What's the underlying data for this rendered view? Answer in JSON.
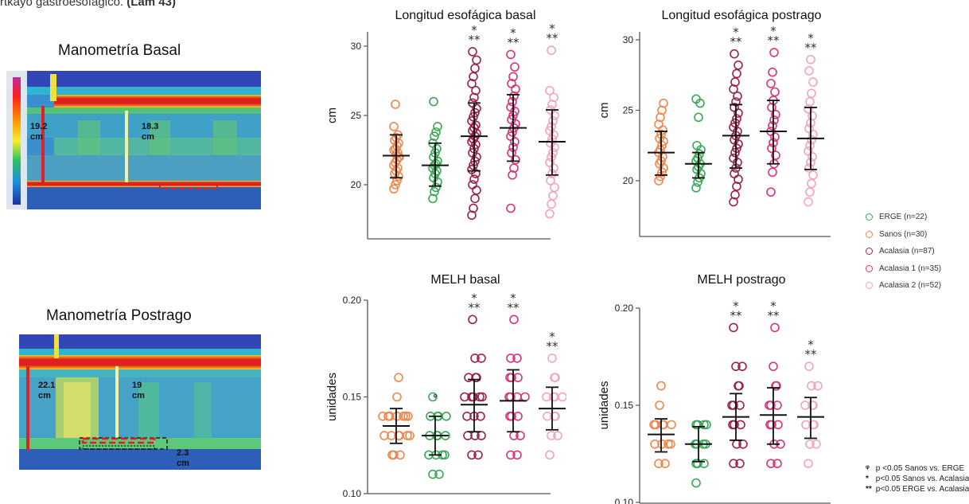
{
  "caption": {
    "prefix": "rtkayo gastroesofágico.",
    "suffix": " (Lam 43)"
  },
  "manometry": {
    "basal": {
      "title": "Manometría Basal",
      "label1_value": "19.2",
      "label1_unit": "cm",
      "label2_value": "18.3",
      "label2_unit": "cm"
    },
    "postrago": {
      "title": "Manometría Postrago",
      "label1_value": "22.1",
      "label1_unit": "cm",
      "label2_value": "19",
      "label2_unit": "cm",
      "label3_value": "2.3",
      "label3_unit": "cm"
    }
  },
  "colors": {
    "ERGE": "#3aa856",
    "Sanos": "#f0874e",
    "Acalasia": "#9b2249",
    "Acalasia 1": "#d8357a",
    "Acalasia 2": "#f2a3be"
  },
  "legend": [
    {
      "label": "ERGE (n=22)",
      "color": "#3aa856"
    },
    {
      "label": "Sanos (n=30)",
      "color": "#f0874e"
    },
    {
      "label": "Acalasia (n=87)",
      "color": "#9b2249"
    },
    {
      "label": "Acalasia 1 (n=35)",
      "color": "#d8357a"
    },
    {
      "label": "Acalasia 2 (n=52)",
      "color": "#f2a3be"
    }
  ],
  "footnotes": [
    {
      "symbol": "ᵠ",
      "text": "p <0.05 Sanos vs. ERGE"
    },
    {
      "symbol": "*",
      "text": "p<0.05 Sanos vs. Acalasia"
    },
    {
      "symbol": "**",
      "text": "p<0.05 ERGE vs. Acalasia"
    }
  ],
  "chart_data": [
    {
      "type": "scatter",
      "title": "Longitud esofágica basal",
      "ylabel": "cm",
      "ylim": [
        17,
        30
      ],
      "yticks": [
        "20",
        "25",
        "30"
      ],
      "ytick_values": [
        20,
        25,
        30
      ],
      "groups": [
        "Sanos",
        "ERGE",
        "Acalasia",
        "Acalasia 1",
        "Acalasia 2"
      ],
      "series": [
        {
          "name": "Sanos",
          "mean": 22.1,
          "sd_low": 20.5,
          "sd_high": 23.6,
          "values": [
            19.7,
            20.0,
            20.3,
            20.6,
            20.8,
            21.0,
            21.2,
            21.4,
            21.6,
            21.8,
            22.0,
            22.0,
            22.2,
            22.3,
            22.5,
            22.6,
            22.8,
            23.0,
            23.2,
            23.4,
            23.6,
            24.2,
            25.8
          ]
        },
        {
          "name": "ERGE",
          "mean": 21.4,
          "sd_low": 19.9,
          "sd_high": 23.0,
          "values": [
            19.0,
            19.5,
            19.8,
            20.2,
            20.5,
            20.8,
            21.0,
            21.2,
            21.4,
            21.5,
            21.7,
            22.0,
            22.3,
            22.6,
            23.0,
            23.5,
            23.8,
            24.2,
            26.0
          ]
        },
        {
          "name": "Acalasia",
          "mean": 23.5,
          "sd_low": 21.0,
          "sd_high": 25.9,
          "annotation": "* **",
          "values": [
            17.8,
            18.3,
            19.0,
            19.6,
            20.0,
            20.4,
            20.8,
            21.1,
            21.4,
            21.7,
            22.0,
            22.3,
            22.6,
            22.9,
            23.1,
            23.3,
            23.5,
            23.7,
            23.9,
            24.1,
            24.3,
            24.6,
            24.9,
            25.2,
            25.5,
            25.9,
            26.3,
            26.8,
            27.3,
            27.8,
            28.4,
            29.0,
            29.6
          ]
        },
        {
          "name": "Acalasia 1",
          "mean": 24.1,
          "sd_low": 21.7,
          "sd_high": 26.5,
          "annotation": "* **",
          "values": [
            18.3,
            20.7,
            21.2,
            21.8,
            22.3,
            22.7,
            23.1,
            23.5,
            23.8,
            24.1,
            24.4,
            24.7,
            25.0,
            25.3,
            25.6,
            26.0,
            26.4,
            26.9,
            27.3,
            27.8,
            28.5,
            29.4
          ]
        },
        {
          "name": "Acalasia 2",
          "mean": 23.1,
          "sd_low": 20.7,
          "sd_high": 25.4,
          "annotation": "* **",
          "values": [
            17.9,
            18.6,
            19.2,
            19.8,
            20.3,
            20.8,
            21.2,
            21.6,
            22.0,
            22.3,
            22.7,
            23.0,
            23.3,
            23.6,
            23.9,
            24.2,
            24.6,
            25.0,
            25.4,
            25.8,
            26.3,
            26.8,
            29.7
          ]
        }
      ]
    },
    {
      "type": "scatter",
      "title": "Longitud esofágica postrago",
      "ylabel": "cm",
      "ylim": [
        17,
        30
      ],
      "yticks": [
        "20",
        "25",
        "30"
      ],
      "ytick_values": [
        20,
        25,
        30
      ],
      "groups": [
        "Sanos",
        "ERGE",
        "Acalasia",
        "Acalasia 1",
        "Acalasia 2"
      ],
      "series": [
        {
          "name": "Sanos",
          "mean": 22.0,
          "sd_low": 20.4,
          "sd_high": 23.5,
          "values": [
            20.0,
            20.3,
            20.6,
            20.9,
            21.2,
            21.4,
            21.7,
            22.0,
            22.2,
            22.5,
            22.8,
            23.0,
            23.3,
            23.6,
            24.0,
            24.5,
            25.0,
            25.5
          ]
        },
        {
          "name": "ERGE",
          "mean": 21.2,
          "sd_low": 20.2,
          "sd_high": 22.0,
          "values": [
            19.5,
            19.9,
            20.2,
            20.5,
            20.8,
            21.0,
            21.2,
            21.4,
            21.6,
            21.9,
            22.2,
            22.5,
            24.5,
            25.5,
            25.8
          ]
        },
        {
          "name": "Acalasia",
          "mean": 23.2,
          "sd_low": 20.9,
          "sd_high": 25.4,
          "annotation": "* **",
          "values": [
            18.5,
            19.0,
            19.6,
            20.1,
            20.5,
            20.9,
            21.3,
            21.6,
            22.0,
            22.3,
            22.6,
            22.9,
            23.2,
            23.5,
            23.8,
            24.1,
            24.4,
            24.8,
            25.2,
            25.6,
            26.0,
            26.5,
            27.0,
            27.6,
            28.2,
            29.0
          ]
        },
        {
          "name": "Acalasia 1",
          "mean": 23.5,
          "sd_low": 21.2,
          "sd_high": 25.7,
          "annotation": "* **",
          "values": [
            19.2,
            20.6,
            21.2,
            21.8,
            22.3,
            22.7,
            23.1,
            23.5,
            23.9,
            24.3,
            24.7,
            25.2,
            25.7,
            26.3,
            26.9,
            27.7,
            29.1
          ]
        },
        {
          "name": "Acalasia 2",
          "mean": 23.0,
          "sd_low": 20.8,
          "sd_high": 25.2,
          "annotation": "* **",
          "values": [
            18.5,
            19.2,
            19.8,
            20.4,
            20.9,
            21.3,
            21.7,
            22.1,
            22.5,
            22.9,
            23.3,
            23.7,
            24.1,
            24.6,
            25.1,
            25.6,
            26.2,
            27.0,
            27.8,
            28.6
          ]
        }
      ]
    },
    {
      "type": "scatter",
      "title": "MELH basal",
      "ylabel": "unidades",
      "ylim": [
        0.1,
        0.2
      ],
      "yticks": [
        "0.10",
        "0.15",
        "0.20"
      ],
      "ytick_values": [
        0.1,
        0.15,
        0.2
      ],
      "groups": [
        "Sanos",
        "ERGE",
        "Acalasia",
        "Acalasia 1",
        "Acalasia 2"
      ],
      "series": [
        {
          "name": "Sanos",
          "mean": 0.135,
          "sd_low": 0.126,
          "sd_high": 0.144,
          "values": [
            0.12,
            0.12,
            0.12,
            0.13,
            0.13,
            0.13,
            0.13,
            0.13,
            0.13,
            0.14,
            0.14,
            0.14,
            0.14,
            0.14,
            0.14,
            0.14,
            0.15,
            0.16
          ]
        },
        {
          "name": "ERGE",
          "mean": 0.13,
          "sd_low": 0.12,
          "sd_high": 0.14,
          "annotation": "ᵠ",
          "values": [
            0.11,
            0.11,
            0.12,
            0.12,
            0.12,
            0.12,
            0.13,
            0.13,
            0.13,
            0.13,
            0.14,
            0.14,
            0.14,
            0.14,
            0.15
          ]
        },
        {
          "name": "Acalasia",
          "mean": 0.146,
          "sd_low": 0.132,
          "sd_high": 0.159,
          "annotation": "* **",
          "values": [
            0.12,
            0.12,
            0.13,
            0.13,
            0.13,
            0.14,
            0.14,
            0.14,
            0.15,
            0.15,
            0.15,
            0.15,
            0.15,
            0.16,
            0.16,
            0.16,
            0.17,
            0.17,
            0.19
          ]
        },
        {
          "name": "Acalasia 1",
          "mean": 0.148,
          "sd_low": 0.132,
          "sd_high": 0.164,
          "annotation": "* **",
          "values": [
            0.12,
            0.12,
            0.13,
            0.13,
            0.14,
            0.14,
            0.14,
            0.15,
            0.15,
            0.15,
            0.15,
            0.16,
            0.16,
            0.16,
            0.17,
            0.17,
            0.19
          ]
        },
        {
          "name": "Acalasia 2",
          "mean": 0.144,
          "sd_low": 0.133,
          "sd_high": 0.155,
          "annotation": "* **",
          "values": [
            0.12,
            0.13,
            0.13,
            0.14,
            0.14,
            0.14,
            0.15,
            0.15,
            0.15,
            0.15,
            0.16,
            0.16,
            0.17
          ]
        }
      ]
    },
    {
      "type": "scatter",
      "title": "MELH postrago",
      "ylabel": "unidades",
      "ylim": [
        0.1,
        0.2
      ],
      "yticks": [
        "0.10",
        "0.15",
        "0.20"
      ],
      "ytick_values": [
        0.1,
        0.15,
        0.2
      ],
      "groups": [
        "Sanos",
        "ERGE",
        "Acalasia",
        "Acalasia 1",
        "Acalasia 2"
      ],
      "series": [
        {
          "name": "Sanos",
          "mean": 0.135,
          "sd_low": 0.126,
          "sd_high": 0.143,
          "values": [
            0.12,
            0.12,
            0.13,
            0.13,
            0.13,
            0.13,
            0.14,
            0.14,
            0.14,
            0.14,
            0.14,
            0.15,
            0.16
          ]
        },
        {
          "name": "ERGE",
          "mean": 0.13,
          "sd_low": 0.121,
          "sd_high": 0.139,
          "values": [
            0.11,
            0.12,
            0.12,
            0.12,
            0.13,
            0.13,
            0.13,
            0.13,
            0.14,
            0.14,
            0.14,
            0.14
          ]
        },
        {
          "name": "Acalasia",
          "mean": 0.144,
          "sd_low": 0.132,
          "sd_high": 0.156,
          "annotation": "* **",
          "values": [
            0.12,
            0.12,
            0.13,
            0.13,
            0.14,
            0.14,
            0.14,
            0.15,
            0.15,
            0.15,
            0.16,
            0.16,
            0.17,
            0.17,
            0.19
          ]
        },
        {
          "name": "Acalasia 1",
          "mean": 0.145,
          "sd_low": 0.13,
          "sd_high": 0.159,
          "annotation": "* **",
          "values": [
            0.12,
            0.12,
            0.13,
            0.13,
            0.14,
            0.14,
            0.14,
            0.15,
            0.15,
            0.15,
            0.16,
            0.16,
            0.17,
            0.19
          ]
        },
        {
          "name": "Acalasia 2",
          "mean": 0.144,
          "sd_low": 0.133,
          "sd_high": 0.154,
          "annotation": "* **",
          "values": [
            0.12,
            0.13,
            0.13,
            0.14,
            0.14,
            0.14,
            0.15,
            0.15,
            0.15,
            0.16,
            0.16,
            0.17
          ]
        }
      ]
    }
  ]
}
